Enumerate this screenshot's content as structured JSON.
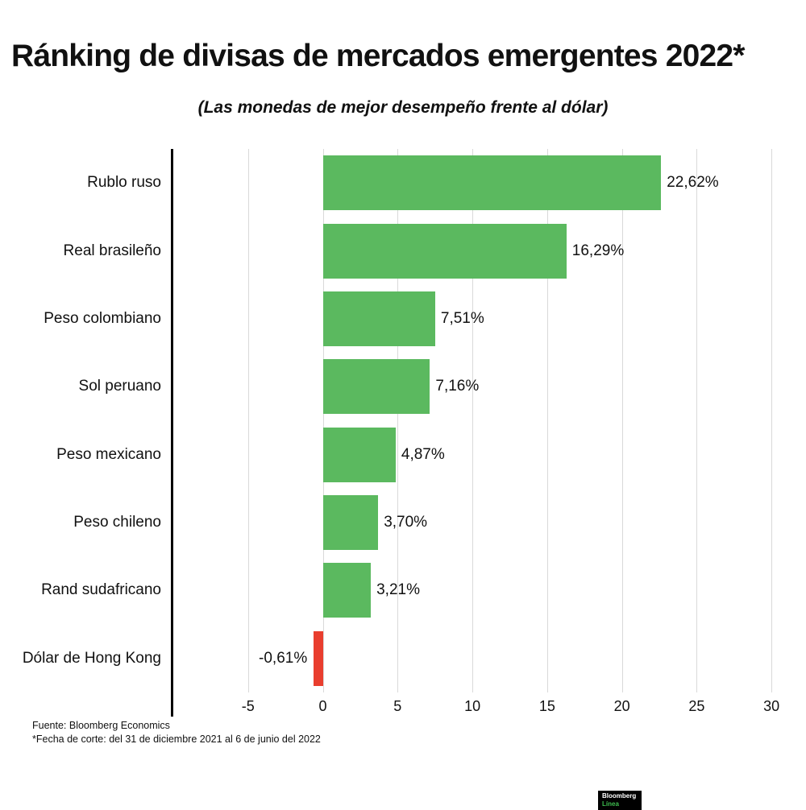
{
  "chart_data": {
    "type": "bar",
    "orientation": "horizontal",
    "title": "Ránking de divisas de mercados emergentes 2022*",
    "subtitle": "(Las monedas de mejor desempeño frente al dólar)",
    "categories": [
      "Rublo ruso",
      "Real brasileño",
      "Peso colombiano",
      "Sol peruano",
      "Peso mexicano",
      "Peso chileno",
      "Rand sudafricano",
      "Dólar de Hong Kong"
    ],
    "values": [
      22.62,
      16.29,
      7.51,
      7.16,
      4.87,
      3.7,
      3.21,
      -0.61
    ],
    "value_labels": [
      "22,62%",
      "16,29%",
      "7,51%",
      "7,16%",
      "4,87%",
      "3,70%",
      "3,21%",
      "-0,61%"
    ],
    "x_ticks": [
      -5,
      0,
      5,
      10,
      15,
      20,
      25,
      30
    ],
    "xlim": [
      -10,
      31.5
    ],
    "grid": true,
    "legend": false,
    "positive_color": "#5bb95f",
    "negative_color": "#e93e2e",
    "gridline_color": "#d9d9d9"
  },
  "footer": {
    "source": "Fuente: Bloomberg Economics",
    "note": "*Fecha de corte: del 31 de diciembre 2021 al 6 de junio del 2022"
  },
  "logo": {
    "line1": "Bloomberg",
    "line2": "Línea"
  }
}
